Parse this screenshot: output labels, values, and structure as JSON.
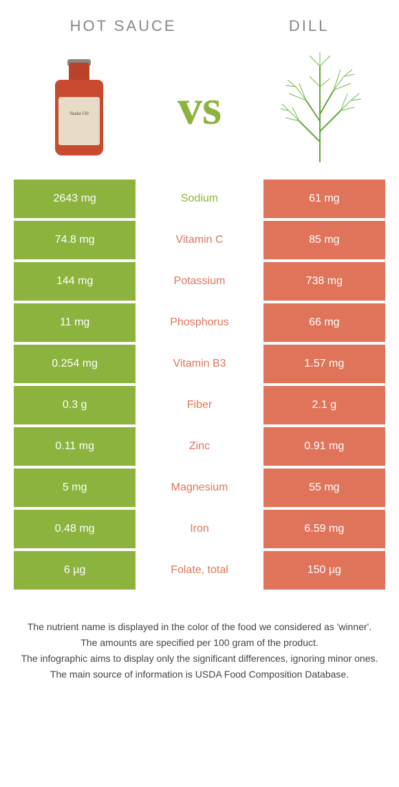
{
  "header": {
    "left_title": "Hot sauce",
    "right_title": "Dill",
    "vs": "vs"
  },
  "bottle_label": "Snake Oil",
  "colors": {
    "green": "#8bb33d",
    "orange": "#e0745a"
  },
  "rows": [
    {
      "left": "2643 mg",
      "mid": "Sodium",
      "right": "61 mg",
      "winner": "left"
    },
    {
      "left": "74.8 mg",
      "mid": "Vitamin C",
      "right": "85 mg",
      "winner": "right"
    },
    {
      "left": "144 mg",
      "mid": "Potassium",
      "right": "738 mg",
      "winner": "right"
    },
    {
      "left": "11 mg",
      "mid": "Phosphorus",
      "right": "66 mg",
      "winner": "right"
    },
    {
      "left": "0.254 mg",
      "mid": "Vitamin B3",
      "right": "1.57 mg",
      "winner": "right"
    },
    {
      "left": "0.3 g",
      "mid": "Fiber",
      "right": "2.1 g",
      "winner": "right"
    },
    {
      "left": "0.11 mg",
      "mid": "Zinc",
      "right": "0.91 mg",
      "winner": "right"
    },
    {
      "left": "5 mg",
      "mid": "Magnesium",
      "right": "55 mg",
      "winner": "right"
    },
    {
      "left": "0.48 mg",
      "mid": "Iron",
      "right": "6.59 mg",
      "winner": "right"
    },
    {
      "left": "6 µg",
      "mid": "Folate, total",
      "right": "150 µg",
      "winner": "right"
    }
  ],
  "footer": {
    "line1": "The nutrient name is displayed in the color of the food we considered as 'winner'.",
    "line2": "The amounts are specified per 100 gram of the product.",
    "line3": "The infographic aims to display only the significant differences, ignoring minor ones.",
    "line4": "The main source of information is USDA Food Composition Database."
  }
}
